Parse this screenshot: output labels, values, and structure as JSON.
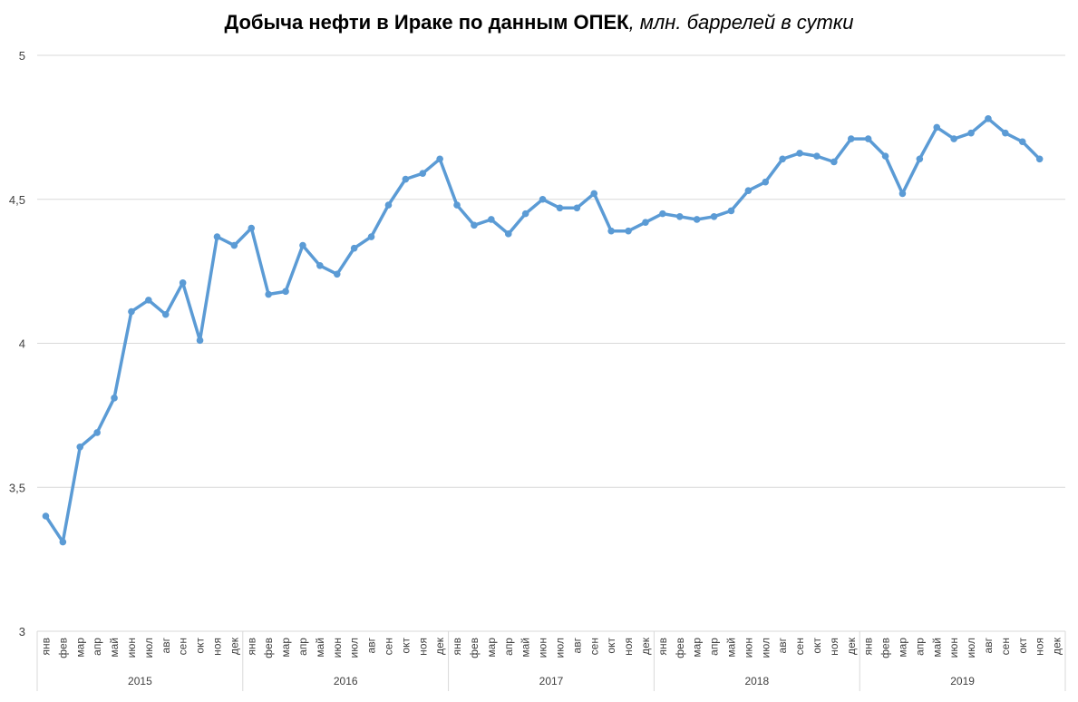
{
  "chart_data": {
    "type": "line",
    "title": "Добыча нефти в Ираке по данным ОПЕК",
    "subtitle": ", млн. баррелей в сутки",
    "ylim": [
      3,
      5
    ],
    "yticks": [
      "3",
      "3,5",
      "4",
      "4,5",
      "5"
    ],
    "ytick_values": [
      3,
      3.5,
      4,
      4.5,
      5
    ],
    "grid": true,
    "line_color": "#5b9bd5",
    "grid_color": "#d9d9d9",
    "months": [
      "янв",
      "фев",
      "мар",
      "апр",
      "май",
      "июн",
      "июл",
      "авг",
      "сен",
      "окт",
      "ноя",
      "дек"
    ],
    "years": [
      "2015",
      "2016",
      "2017",
      "2018",
      "2019"
    ],
    "series": [
      {
        "values": [
          3.4,
          3.31,
          3.64,
          3.69,
          3.81,
          4.11,
          4.15,
          4.1,
          4.21,
          4.01,
          4.37,
          4.34,
          4.4,
          4.17,
          4.18,
          4.34,
          4.27,
          4.24,
          4.33,
          4.37,
          4.48,
          4.57,
          4.59,
          4.64,
          4.48,
          4.41,
          4.43,
          4.38,
          4.45,
          4.5,
          4.47,
          4.47,
          4.52,
          4.39,
          4.39,
          4.42,
          4.45,
          4.44,
          4.43,
          4.44,
          4.46,
          4.53,
          4.56,
          4.64,
          4.66,
          4.65,
          4.63,
          4.71,
          4.71,
          4.65,
          4.52,
          4.64,
          4.75,
          4.71,
          4.73,
          4.78,
          4.73,
          4.7,
          4.64
        ]
      }
    ]
  }
}
